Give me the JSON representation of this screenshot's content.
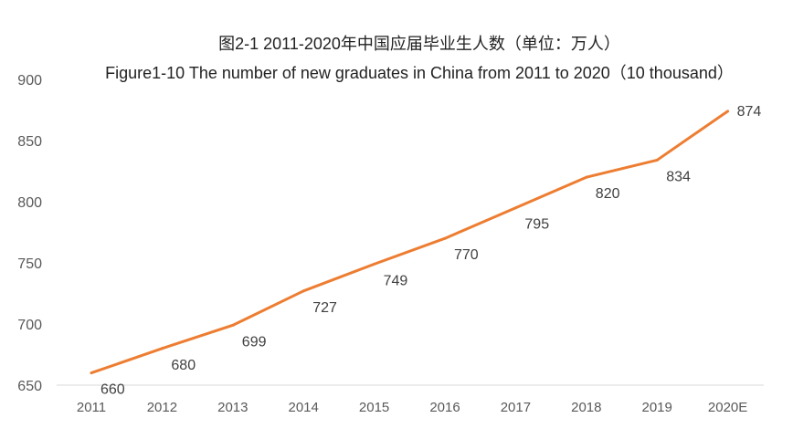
{
  "chart_data": {
    "type": "line",
    "title": "图2-1 2011-2020年中国应届毕业生人数（单位：万人）",
    "subtitle": "Figure1-10 The number of new graduates in China from 2011 to 2020（10 thousand）",
    "categories": [
      "2011",
      "2012",
      "2013",
      "2014",
      "2015",
      "2016",
      "2017",
      "2018",
      "2019",
      "2020E"
    ],
    "series": [
      {
        "name": "graduates",
        "values": [
          660,
          680,
          699,
          727,
          749,
          770,
          795,
          820,
          834,
          874
        ],
        "color": "#ED7D31"
      }
    ],
    "xlabel": "",
    "ylabel": "",
    "ylim": [
      650,
      900
    ],
    "yticks": [
      "650",
      "700",
      "750",
      "800",
      "850",
      "900"
    ],
    "grid": false,
    "legend": "none"
  }
}
